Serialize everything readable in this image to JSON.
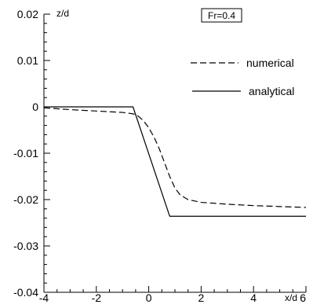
{
  "chart_data": {
    "type": "line",
    "xlabel": "x/d",
    "ylabel": "z/d",
    "xlim": [
      -4,
      6
    ],
    "ylim": [
      -0.04,
      0.02
    ],
    "grid": false,
    "legend_position": "top-right",
    "annotation": "Fr=0.4",
    "x_ticks": [
      {
        "value": -4,
        "label": "-4"
      },
      {
        "value": -2,
        "label": "-2"
      },
      {
        "value": 0,
        "label": "0"
      },
      {
        "value": 2,
        "label": "2"
      },
      {
        "value": 4,
        "label": "4"
      },
      {
        "value": 6,
        "label": "6"
      }
    ],
    "y_ticks": [
      {
        "value": 0.02,
        "label": "0.02"
      },
      {
        "value": 0.01,
        "label": "0.01"
      },
      {
        "value": 0,
        "label": "0"
      },
      {
        "value": -0.01,
        "label": "-0.01"
      },
      {
        "value": -0.02,
        "label": "-0.02"
      },
      {
        "value": -0.03,
        "label": "-0.03"
      },
      {
        "value": -0.04,
        "label": "-0.04"
      }
    ],
    "series": [
      {
        "name": "numerical",
        "style": "dashed",
        "color": "#000000",
        "points": [
          [
            -4.0,
            -0.0002
          ],
          [
            -3.0,
            -0.0006
          ],
          [
            -2.0,
            -0.0009
          ],
          [
            -1.0,
            -0.0012
          ],
          [
            -0.6,
            -0.0015
          ],
          [
            -0.4,
            -0.002
          ],
          [
            -0.2,
            -0.003
          ],
          [
            0.0,
            -0.0045
          ],
          [
            0.2,
            -0.0065
          ],
          [
            0.4,
            -0.009
          ],
          [
            0.6,
            -0.012
          ],
          [
            0.8,
            -0.015
          ],
          [
            1.0,
            -0.0175
          ],
          [
            1.2,
            -0.019
          ],
          [
            1.5,
            -0.02
          ],
          [
            2.0,
            -0.0206
          ],
          [
            3.0,
            -0.021
          ],
          [
            4.0,
            -0.0213
          ],
          [
            5.0,
            -0.0215
          ],
          [
            6.0,
            -0.0217
          ]
        ]
      },
      {
        "name": "analytical",
        "style": "solid",
        "color": "#000000",
        "points": [
          [
            -4.0,
            0.0
          ],
          [
            -0.6,
            0.0
          ],
          [
            0.8,
            -0.0236
          ],
          [
            6.0,
            -0.0236
          ]
        ]
      }
    ]
  }
}
